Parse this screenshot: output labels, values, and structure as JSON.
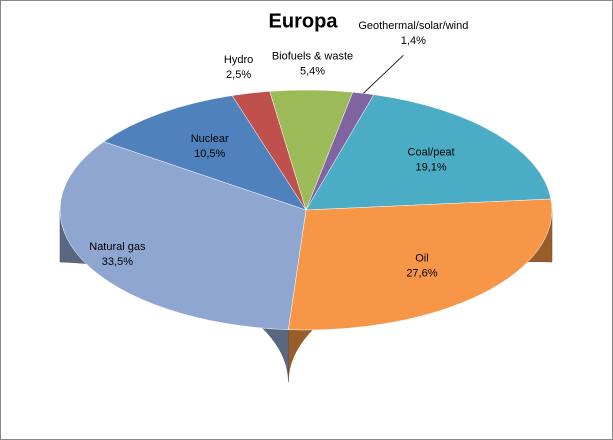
{
  "chart_data": {
    "type": "pie",
    "title": "Europa",
    "categories": [
      "Coal/peat",
      "Oil",
      "Natural gas",
      "Nuclear",
      "Hydro",
      "Biofuels & waste",
      "Geothermal/solar/wind"
    ],
    "values": [
      19.1,
      27.6,
      33.5,
      10.5,
      2.5,
      5.4,
      1.4
    ],
    "value_labels": [
      "19,1%",
      "27,6%",
      "33,5%",
      "10,5%",
      "2,5%",
      "5,4%",
      "1,4%"
    ],
    "colors": [
      "#4bacc6",
      "#f79646",
      "#8fa6d0",
      "#4f81bd",
      "#c0504d",
      "#9bbb59",
      "#8064a2"
    ]
  }
}
